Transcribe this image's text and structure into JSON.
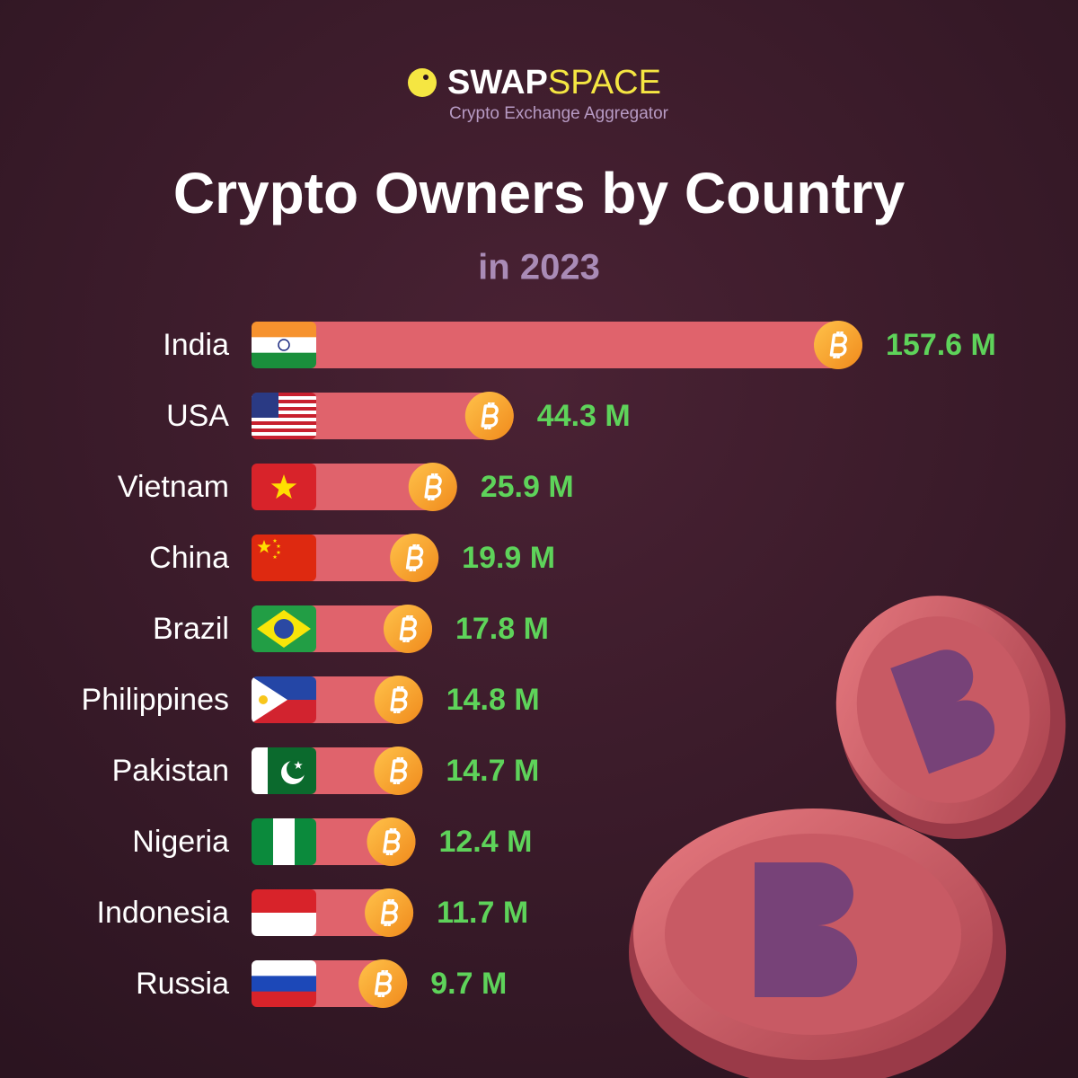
{
  "header": {
    "brand_a": "SWAP",
    "brand_b": "SPACE",
    "tagline": "Crypto Exchange Aggregator"
  },
  "chart_data": {
    "type": "bar",
    "title": "Crypto Owners by Country",
    "subtitle": "in 2023",
    "categories": [
      "India",
      "USA",
      "Vietnam",
      "China",
      "Brazil",
      "Philippines",
      "Pakistan",
      "Nigeria",
      "Indonesia",
      "Russia"
    ],
    "values": [
      157.6,
      44.3,
      25.9,
      19.9,
      17.8,
      14.8,
      14.7,
      12.4,
      11.7,
      9.7
    ],
    "value_labels": [
      "157.6 M",
      "44.3 M",
      "25.9 M",
      "19.9 M",
      "17.8 M",
      "14.8 M",
      "14.7 M",
      "12.4 M",
      "11.7 M",
      "9.7 M"
    ],
    "color": "#e0636c"
  }
}
